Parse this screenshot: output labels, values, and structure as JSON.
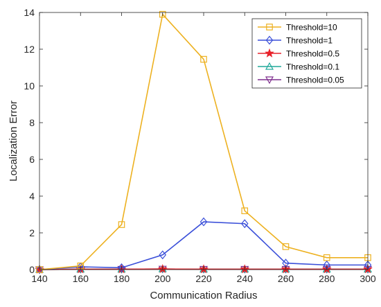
{
  "chart_data": {
    "type": "line",
    "title": "",
    "xlabel": "Communication Radius",
    "ylabel": "Localization Error",
    "xlim": [
      140,
      300
    ],
    "ylim": [
      0,
      14
    ],
    "x": [
      140,
      160,
      180,
      200,
      220,
      240,
      260,
      280,
      300
    ],
    "xticks": [
      "140",
      "160",
      "180",
      "200",
      "220",
      "240",
      "260",
      "280",
      "300"
    ],
    "yticks": [
      "0",
      "2",
      "4",
      "6",
      "8",
      "10",
      "12",
      "14"
    ],
    "grid": false,
    "legend_position": "top-right",
    "series": [
      {
        "name": "Threshold=10",
        "color": "#EDB120",
        "marker": "square",
        "values": [
          0.0,
          0.2,
          2.45,
          13.9,
          11.45,
          3.2,
          1.25,
          0.65,
          0.65
        ]
      },
      {
        "name": "Threshold=1",
        "color": "#3A4FD9",
        "marker": "diamond",
        "values": [
          0.0,
          0.15,
          0.1,
          0.8,
          2.6,
          2.5,
          0.35,
          0.25,
          0.25
        ]
      },
      {
        "name": "Threshold=0.5",
        "color": "#E8222A",
        "marker": "star",
        "values": [
          0.0,
          0.02,
          0.02,
          0.03,
          0.02,
          0.02,
          0.02,
          0.02,
          0.02
        ]
      },
      {
        "name": "Threshold=0.1",
        "color": "#1FA89A",
        "marker": "triangle-up",
        "values": [
          0.0,
          0.02,
          0.02,
          0.03,
          0.02,
          0.02,
          0.02,
          0.02,
          0.02
        ]
      },
      {
        "name": "Threshold=0.05",
        "color": "#7E2F8E",
        "marker": "triangle-down",
        "values": [
          0.0,
          0.02,
          0.02,
          0.03,
          0.02,
          0.02,
          0.02,
          0.02,
          0.02
        ]
      }
    ]
  }
}
